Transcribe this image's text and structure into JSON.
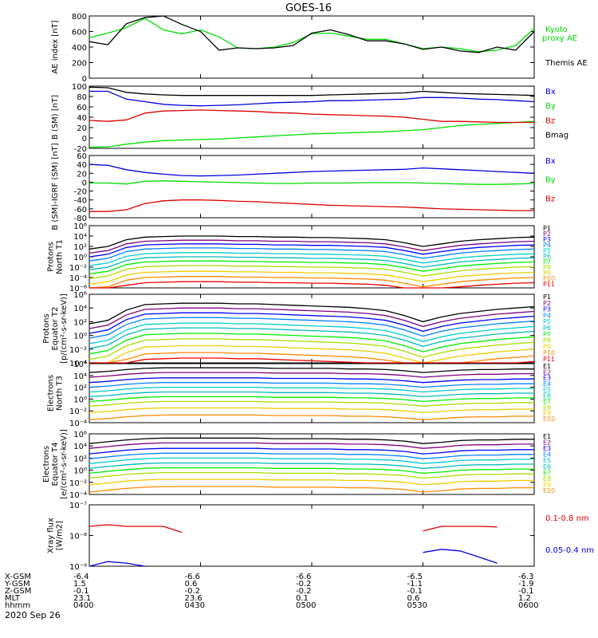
{
  "title": "GOES-16",
  "date": "2020 Sep 26",
  "colors": {
    "green": "#00dd00",
    "blue": "#0000dd",
    "red": "#dd0000",
    "black": "#000000",
    "ch": [
      "#000000",
      "#800080",
      "#0000ff",
      "#0080ff",
      "#00cccc",
      "#00bbbb",
      "#00ee00",
      "#aadd00",
      "#eecc00",
      "#ff8800",
      "#ee0000"
    ]
  },
  "chart_data": [
    {
      "type": "line",
      "id": "ae",
      "ylabel": "AE index [nT]",
      "ylim": [
        0,
        800
      ],
      "y_ticks": [
        "0",
        "200",
        "400",
        "600",
        "800"
      ],
      "x": [
        "0400",
        "0405",
        "0410",
        "0415",
        "0420",
        "0425",
        "0430",
        "0435",
        "0440",
        "0445",
        "0450",
        "0455",
        "0500",
        "0505",
        "0510",
        "0515",
        "0520",
        "0525",
        "0530",
        "0535",
        "0540",
        "0545",
        "0550",
        "0555",
        "0600"
      ],
      "series": [
        {
          "name": "Kyoto proxy AE",
          "legend_lines": [
            "Kyoto",
            "proxy AE"
          ],
          "color": "green",
          "values": [
            520,
            580,
            650,
            770,
            620,
            570,
            620,
            530,
            390,
            380,
            400,
            460,
            570,
            580,
            540,
            500,
            500,
            440,
            380,
            400,
            380,
            340,
            360,
            420,
            640
          ]
        },
        {
          "name": "Themis AE",
          "legend_lines": [
            "Themis AE"
          ],
          "color": "black",
          "values": [
            470,
            430,
            700,
            780,
            810,
            690,
            600,
            360,
            390,
            380,
            390,
            420,
            580,
            620,
            560,
            480,
            480,
            440,
            370,
            400,
            350,
            330,
            400,
            360,
            600
          ]
        }
      ]
    },
    {
      "type": "line",
      "id": "bsm",
      "ylabel": "B (SM) [nT]",
      "ylim": [
        -20,
        100
      ],
      "y_ticks": [
        "-20",
        "0",
        "20",
        "40",
        "60",
        "80",
        "100"
      ],
      "series": [
        {
          "name": "Bx",
          "color": "blue",
          "values": [
            90,
            90,
            75,
            70,
            65,
            63,
            62,
            63,
            64,
            66,
            68,
            69,
            70,
            72,
            72,
            73,
            74,
            75,
            78,
            78,
            77,
            75,
            74,
            72,
            70
          ]
        },
        {
          "name": "By",
          "color": "green",
          "values": [
            -18,
            -17,
            -12,
            -8,
            -5,
            -4,
            -3,
            -2,
            0,
            2,
            4,
            6,
            8,
            9,
            10,
            11,
            12,
            14,
            16,
            20,
            24,
            26,
            28,
            30,
            32
          ]
        },
        {
          "name": "Bz",
          "color": "red",
          "values": [
            34,
            32,
            35,
            48,
            52,
            53,
            54,
            53,
            52,
            51,
            49,
            48,
            46,
            45,
            44,
            43,
            42,
            40,
            36,
            32,
            32,
            31,
            30,
            30,
            30
          ]
        },
        {
          "name": "Bmag",
          "color": "black",
          "values": [
            98,
            97,
            88,
            85,
            83,
            82,
            82,
            82,
            82,
            82,
            82,
            82,
            82,
            83,
            84,
            85,
            86,
            87,
            90,
            88,
            86,
            85,
            84,
            83,
            82
          ]
        }
      ]
    },
    {
      "type": "line",
      "id": "bigrf",
      "ylabel": "B (SM)-IGRF (SM) [nT]",
      "ylim": [
        -80,
        60
      ],
      "y_ticks": [
        "-80",
        "-60",
        "-40",
        "-20",
        "0",
        "20",
        "40",
        "60"
      ],
      "series": [
        {
          "name": "Bx",
          "color": "blue",
          "values": [
            40,
            38,
            28,
            22,
            18,
            15,
            14,
            15,
            16,
            18,
            20,
            22,
            24,
            25,
            26,
            27,
            28,
            29,
            32,
            30,
            28,
            26,
            24,
            22,
            20
          ]
        },
        {
          "name": "By",
          "color": "green",
          "values": [
            -2,
            -2,
            -4,
            2,
            3,
            2,
            1,
            0,
            -1,
            -2,
            -3,
            -3,
            -2,
            -2,
            -2,
            -1,
            -1,
            -1,
            -2,
            -3,
            -4,
            -5,
            -5,
            -4,
            -3
          ]
        },
        {
          "name": "Bz",
          "color": "red",
          "values": [
            -66,
            -66,
            -62,
            -48,
            -42,
            -40,
            -40,
            -41,
            -43,
            -44,
            -46,
            -48,
            -50,
            -52,
            -53,
            -54,
            -55,
            -56,
            -58,
            -60,
            -61,
            -62,
            -63,
            -64,
            -64
          ]
        }
      ]
    },
    {
      "type": "line",
      "id": "pn",
      "log": true,
      "ylabel": [
        "Protons",
        "North T1"
      ],
      "ylim": [
        -6,
        6
      ],
      "y_ticks": [
        "10⁻⁶",
        "10⁻⁴",
        "10⁻²",
        "10⁰",
        "10²",
        "10⁴",
        "10⁶"
      ],
      "channels": [
        "P1",
        "P2",
        "P3",
        "P4",
        "P5",
        "P6",
        "P7",
        "P8",
        "P9",
        "P10",
        "P11"
      ],
      "base": [
        3.5,
        2.7,
        2,
        1.2,
        0.3,
        -0.5,
        -1.3,
        -2.2,
        -3.3,
        -4.3,
        -5.3
      ],
      "profile": [
        -2,
        -1.5,
        -0.2,
        0.3,
        0.4,
        0.5,
        0.5,
        0.5,
        0.4,
        0.4,
        0.3,
        0.3,
        0.2,
        0.2,
        0.1,
        0,
        -0.2,
        -0.8,
        -1.5,
        -1,
        -0.5,
        -0.2,
        0,
        0.2,
        0.3
      ]
    },
    {
      "type": "line",
      "id": "pe",
      "log": true,
      "ylabel": [
        "Protons",
        "Equator T2",
        "[p/(cm²-s-sr-keV)]"
      ],
      "ylim": [
        -4,
        6
      ],
      "y_ticks": [
        "10⁻⁴",
        "10⁻²",
        "10⁰",
        "10²",
        "10⁴",
        "10⁶"
      ],
      "channels": [
        "P1",
        "P2",
        "P3",
        "P4",
        "P5",
        "P6",
        "P7",
        "P8",
        "P9",
        "P10",
        "P11"
      ],
      "base": [
        4.2,
        3.5,
        2.8,
        2.1,
        1.3,
        0.6,
        -0.2,
        -1,
        -2,
        -3,
        -3.8
      ],
      "profile": [
        -2.5,
        -2,
        -0.5,
        0.3,
        0.4,
        0.5,
        0.5,
        0.5,
        0.4,
        0.4,
        0.3,
        0.2,
        0.1,
        0,
        -0.1,
        -0.3,
        -0.6,
        -1.3,
        -2.2,
        -1.5,
        -1,
        -0.7,
        -0.4,
        -0.2,
        0
      ]
    },
    {
      "type": "line",
      "id": "en",
      "log": true,
      "ylabel": [
        "Electrons",
        "North T3"
      ],
      "ylim": [
        -4,
        6
      ],
      "y_ticks": [
        "10⁻⁴",
        "10⁻²",
        "10⁰",
        "10²",
        "10⁴",
        "10⁶"
      ],
      "channels": [
        "E1",
        "E2",
        "E3",
        "E4",
        "E5",
        "E6",
        "E7",
        "E8",
        "E9",
        "E10"
      ],
      "base": [
        5,
        4.2,
        3.3,
        2.5,
        1.7,
        0.9,
        0.1,
        -0.7,
        -1.8,
        -3
      ],
      "profile": [
        -0.5,
        -0.3,
        0,
        0.2,
        0.3,
        0.3,
        0.3,
        0.3,
        0.3,
        0.3,
        0.2,
        0.2,
        0.2,
        0.2,
        0.1,
        0.1,
        0,
        -0.2,
        -0.5,
        -0.3,
        -0.1,
        0,
        0,
        0.1,
        0.1
      ]
    },
    {
      "type": "line",
      "id": "ee",
      "log": true,
      "ylabel": [
        "Electrons",
        "Equator T4",
        "[e/(cm²-s-sr-keV)]"
      ],
      "ylim": [
        -4,
        6
      ],
      "y_ticks": [
        "10⁻⁴",
        "10⁻²",
        "10⁰",
        "10²",
        "10⁴",
        "10⁶"
      ],
      "channels": [
        "E1",
        "E2",
        "E3",
        "E4",
        "E5",
        "E6",
        "E7",
        "E8",
        "E9",
        "E10"
      ],
      "base": [
        5,
        4.2,
        3.3,
        2.5,
        1.7,
        0.9,
        0.1,
        -0.7,
        -1.8,
        -3
      ],
      "profile": [
        -0.6,
        -0.3,
        0,
        0.2,
        0.3,
        0.3,
        0.3,
        0.3,
        0.3,
        0.3,
        0.2,
        0.2,
        0.2,
        0.2,
        0.1,
        0.1,
        0,
        -0.2,
        -0.6,
        -0.4,
        -0.1,
        0,
        0,
        0.1,
        0.1
      ]
    },
    {
      "type": "line",
      "id": "xray",
      "log": true,
      "ylabel": [
        "Xray flux",
        "[W/m2]"
      ],
      "ylim": [
        -9,
        -7
      ],
      "y_ticks": [
        "10⁻⁹",
        "10⁻⁸",
        "10⁻⁷"
      ],
      "series": [
        {
          "name": "0.1-0.8 nm",
          "color": "red",
          "values": [
            -7.7,
            -7.65,
            -7.7,
            -7.7,
            -7.7,
            -7.9,
            null,
            null,
            null,
            null,
            null,
            null,
            null,
            null,
            null,
            null,
            null,
            null,
            -7.85,
            -7.7,
            -7.7,
            -7.7,
            -7.72,
            null,
            null
          ]
        },
        {
          "name": "0.05-0.4 nm",
          "color": "blue",
          "values": [
            -9.2,
            -8.85,
            -8.9,
            -9.1,
            null,
            null,
            null,
            null,
            null,
            null,
            null,
            null,
            null,
            null,
            null,
            null,
            null,
            null,
            -8.55,
            -8.45,
            -8.5,
            -8.7,
            -8.9,
            null,
            null
          ]
        }
      ]
    }
  ],
  "footer": {
    "row_labels": [
      "X-GSM",
      "Y-GSM",
      "Z-GSM",
      "MLT",
      "hhmm"
    ],
    "columns": [
      [
        "-6.4",
        "1.5",
        "-0.1",
        "23.1",
        "0400"
      ],
      [
        "-6.6",
        "0.6",
        "-0.2",
        "23.6",
        "0430"
      ],
      [
        "-6.6",
        "-0.2",
        "-0.2",
        "0.1",
        "0500"
      ],
      [
        "-6.5",
        "-1.1",
        "-0.1",
        "0.6",
        "0530"
      ],
      [
        "-6.3",
        "-1.9",
        "-0.1",
        "1.2",
        "0600"
      ]
    ]
  }
}
